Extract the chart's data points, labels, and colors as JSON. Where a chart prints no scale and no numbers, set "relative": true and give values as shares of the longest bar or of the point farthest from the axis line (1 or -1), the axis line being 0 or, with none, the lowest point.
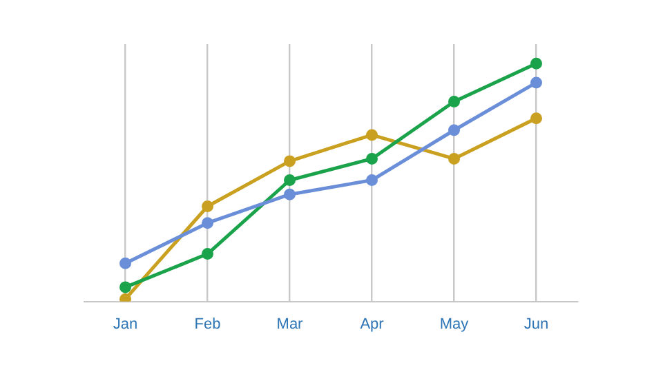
{
  "chart_data": {
    "type": "line",
    "relative": true,
    "categories": [
      "Jan",
      "Feb",
      "Mar",
      "Apr",
      "May",
      "Jun"
    ],
    "series": [
      {
        "color": "#6a8fd8",
        "values": [
          0.16,
          0.33,
          0.45,
          0.51,
          0.72,
          0.92
        ]
      },
      {
        "color": "#1aa34a",
        "values": [
          0.06,
          0.2,
          0.51,
          0.6,
          0.84,
          1
        ]
      },
      {
        "color": "#c9a020",
        "values": [
          0.01,
          0.4,
          0.59,
          0.7,
          0.6,
          0.77
        ]
      }
    ],
    "grid": "x",
    "marker": "circle",
    "line_style": "solid",
    "legend": false
  }
}
